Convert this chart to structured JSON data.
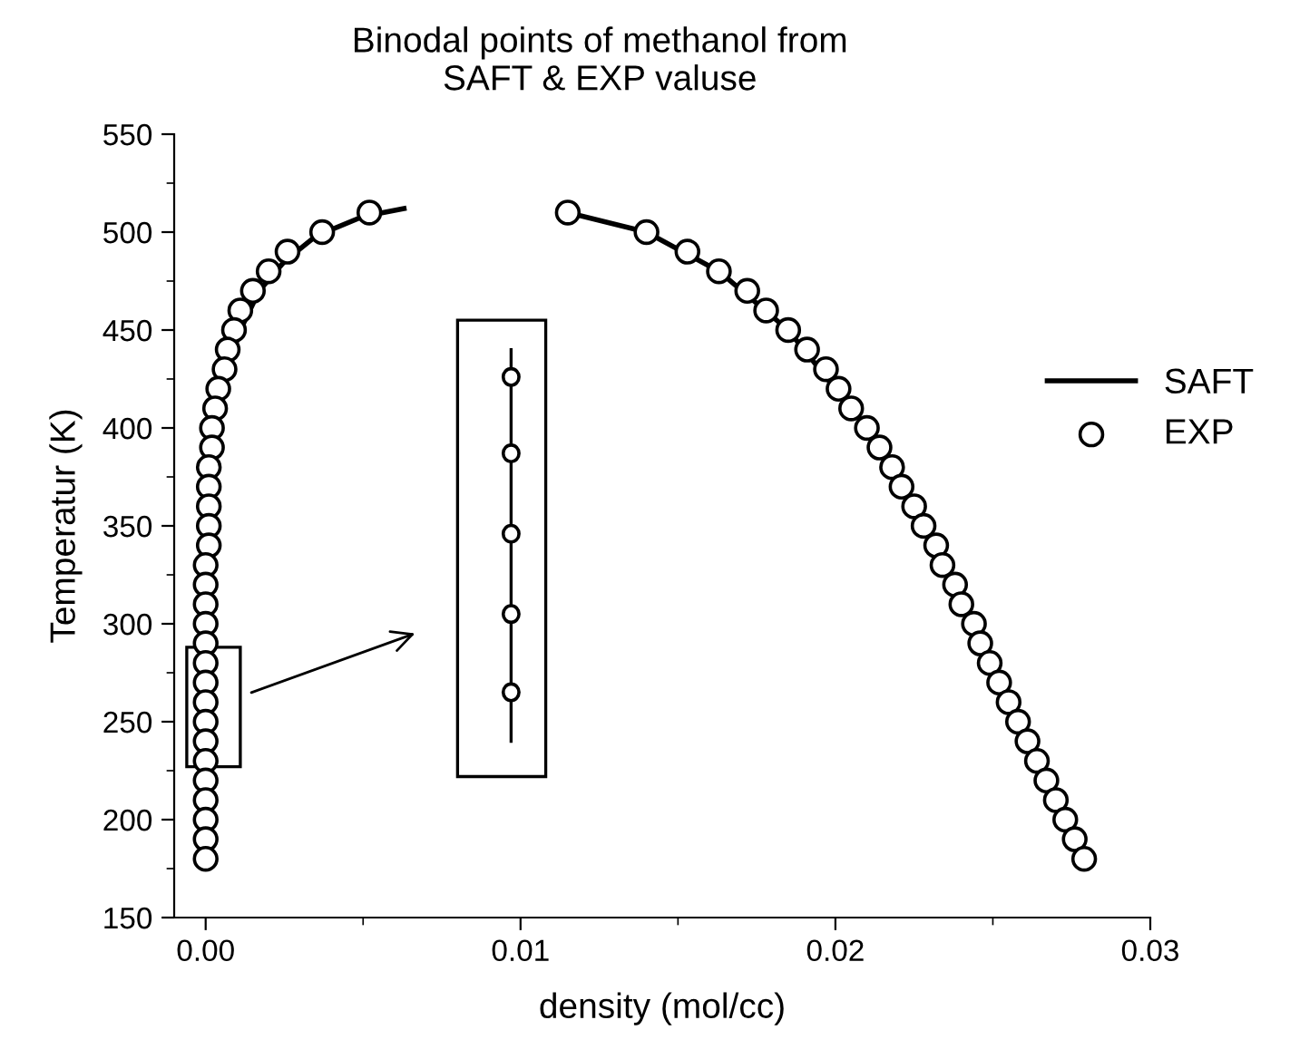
{
  "chart_data": {
    "type": "scatter",
    "title": "Binodal points of methanol from\nSAFT & EXP valuse",
    "xlabel": "density (mol/cc)",
    "ylabel": "Temperatur (K)",
    "xlim": [
      -0.001,
      0.03
    ],
    "xticks": [
      {
        "value": 0,
        "label": "0.00"
      },
      0.01,
      0.02,
      0.03
    ],
    "ylim": [
      150,
      550
    ],
    "yticks": [
      150,
      200,
      250,
      300,
      350,
      400,
      450,
      500,
      550
    ],
    "grid": false,
    "legend": "right",
    "series": [
      {
        "name": "SAFT",
        "type": "line",
        "color": "#000000",
        "marker": "none",
        "line_style": "solid",
        "x": [
          0.0,
          0.0,
          0.0001,
          0.0002,
          0.0004,
          0.0007,
          0.0011,
          0.0017,
          0.0025,
          0.0035,
          0.005,
          0.0063,
          null,
          0.0115,
          0.014,
          0.0163,
          0.0185,
          0.021,
          0.0228,
          0.0244,
          0.0258,
          0.0273,
          0.0279
        ],
        "values": [
          180,
          300,
          350,
          380,
          410,
          430,
          450,
          470,
          485,
          498,
          508,
          512,
          null,
          510,
          500,
          480,
          450,
          400,
          350,
          300,
          250,
          200,
          180
        ]
      },
      {
        "name": "EXP",
        "type": "scatter",
        "color": "#000000",
        "marker": "circle",
        "x": [
          0.0052,
          0.0037,
          0.0026,
          0.002,
          0.0015,
          0.0011,
          0.0009,
          0.0007,
          0.0006,
          0.0004,
          0.0003,
          0.0002,
          0.0002,
          0.0001,
          0.0001,
          0.0001,
          0.0001,
          0.0001,
          0.0,
          0.0,
          0.0,
          0.0,
          0.0,
          0.0,
          0.0,
          0.0,
          0.0,
          0.0,
          0.0,
          0.0,
          0.0,
          0.0,
          0.0,
          0.0,
          0.0115,
          0.014,
          0.0153,
          0.0163,
          0.0172,
          0.0178,
          0.0185,
          0.0191,
          0.0197,
          0.0201,
          0.0205,
          0.021,
          0.0214,
          0.0218,
          0.0221,
          0.0225,
          0.0228,
          0.0232,
          0.0234,
          0.0238,
          0.024,
          0.0244,
          0.0246,
          0.0249,
          0.0252,
          0.0255,
          0.0258,
          0.0261,
          0.0264,
          0.0267,
          0.027,
          0.0273,
          0.0276,
          0.0279
        ],
        "values": [
          510,
          500,
          490,
          480,
          470,
          460,
          450,
          440,
          430,
          420,
          410,
          400,
          390,
          380,
          370,
          360,
          350,
          340,
          330,
          320,
          310,
          300,
          290,
          280,
          270,
          260,
          250,
          240,
          230,
          220,
          210,
          200,
          190,
          180,
          510,
          500,
          490,
          480,
          470,
          460,
          450,
          440,
          430,
          420,
          410,
          400,
          390,
          380,
          370,
          360,
          350,
          340,
          330,
          320,
          310,
          300,
          290,
          280,
          270,
          260,
          250,
          240,
          230,
          220,
          210,
          200,
          190,
          180
        ]
      }
    ]
  }
}
